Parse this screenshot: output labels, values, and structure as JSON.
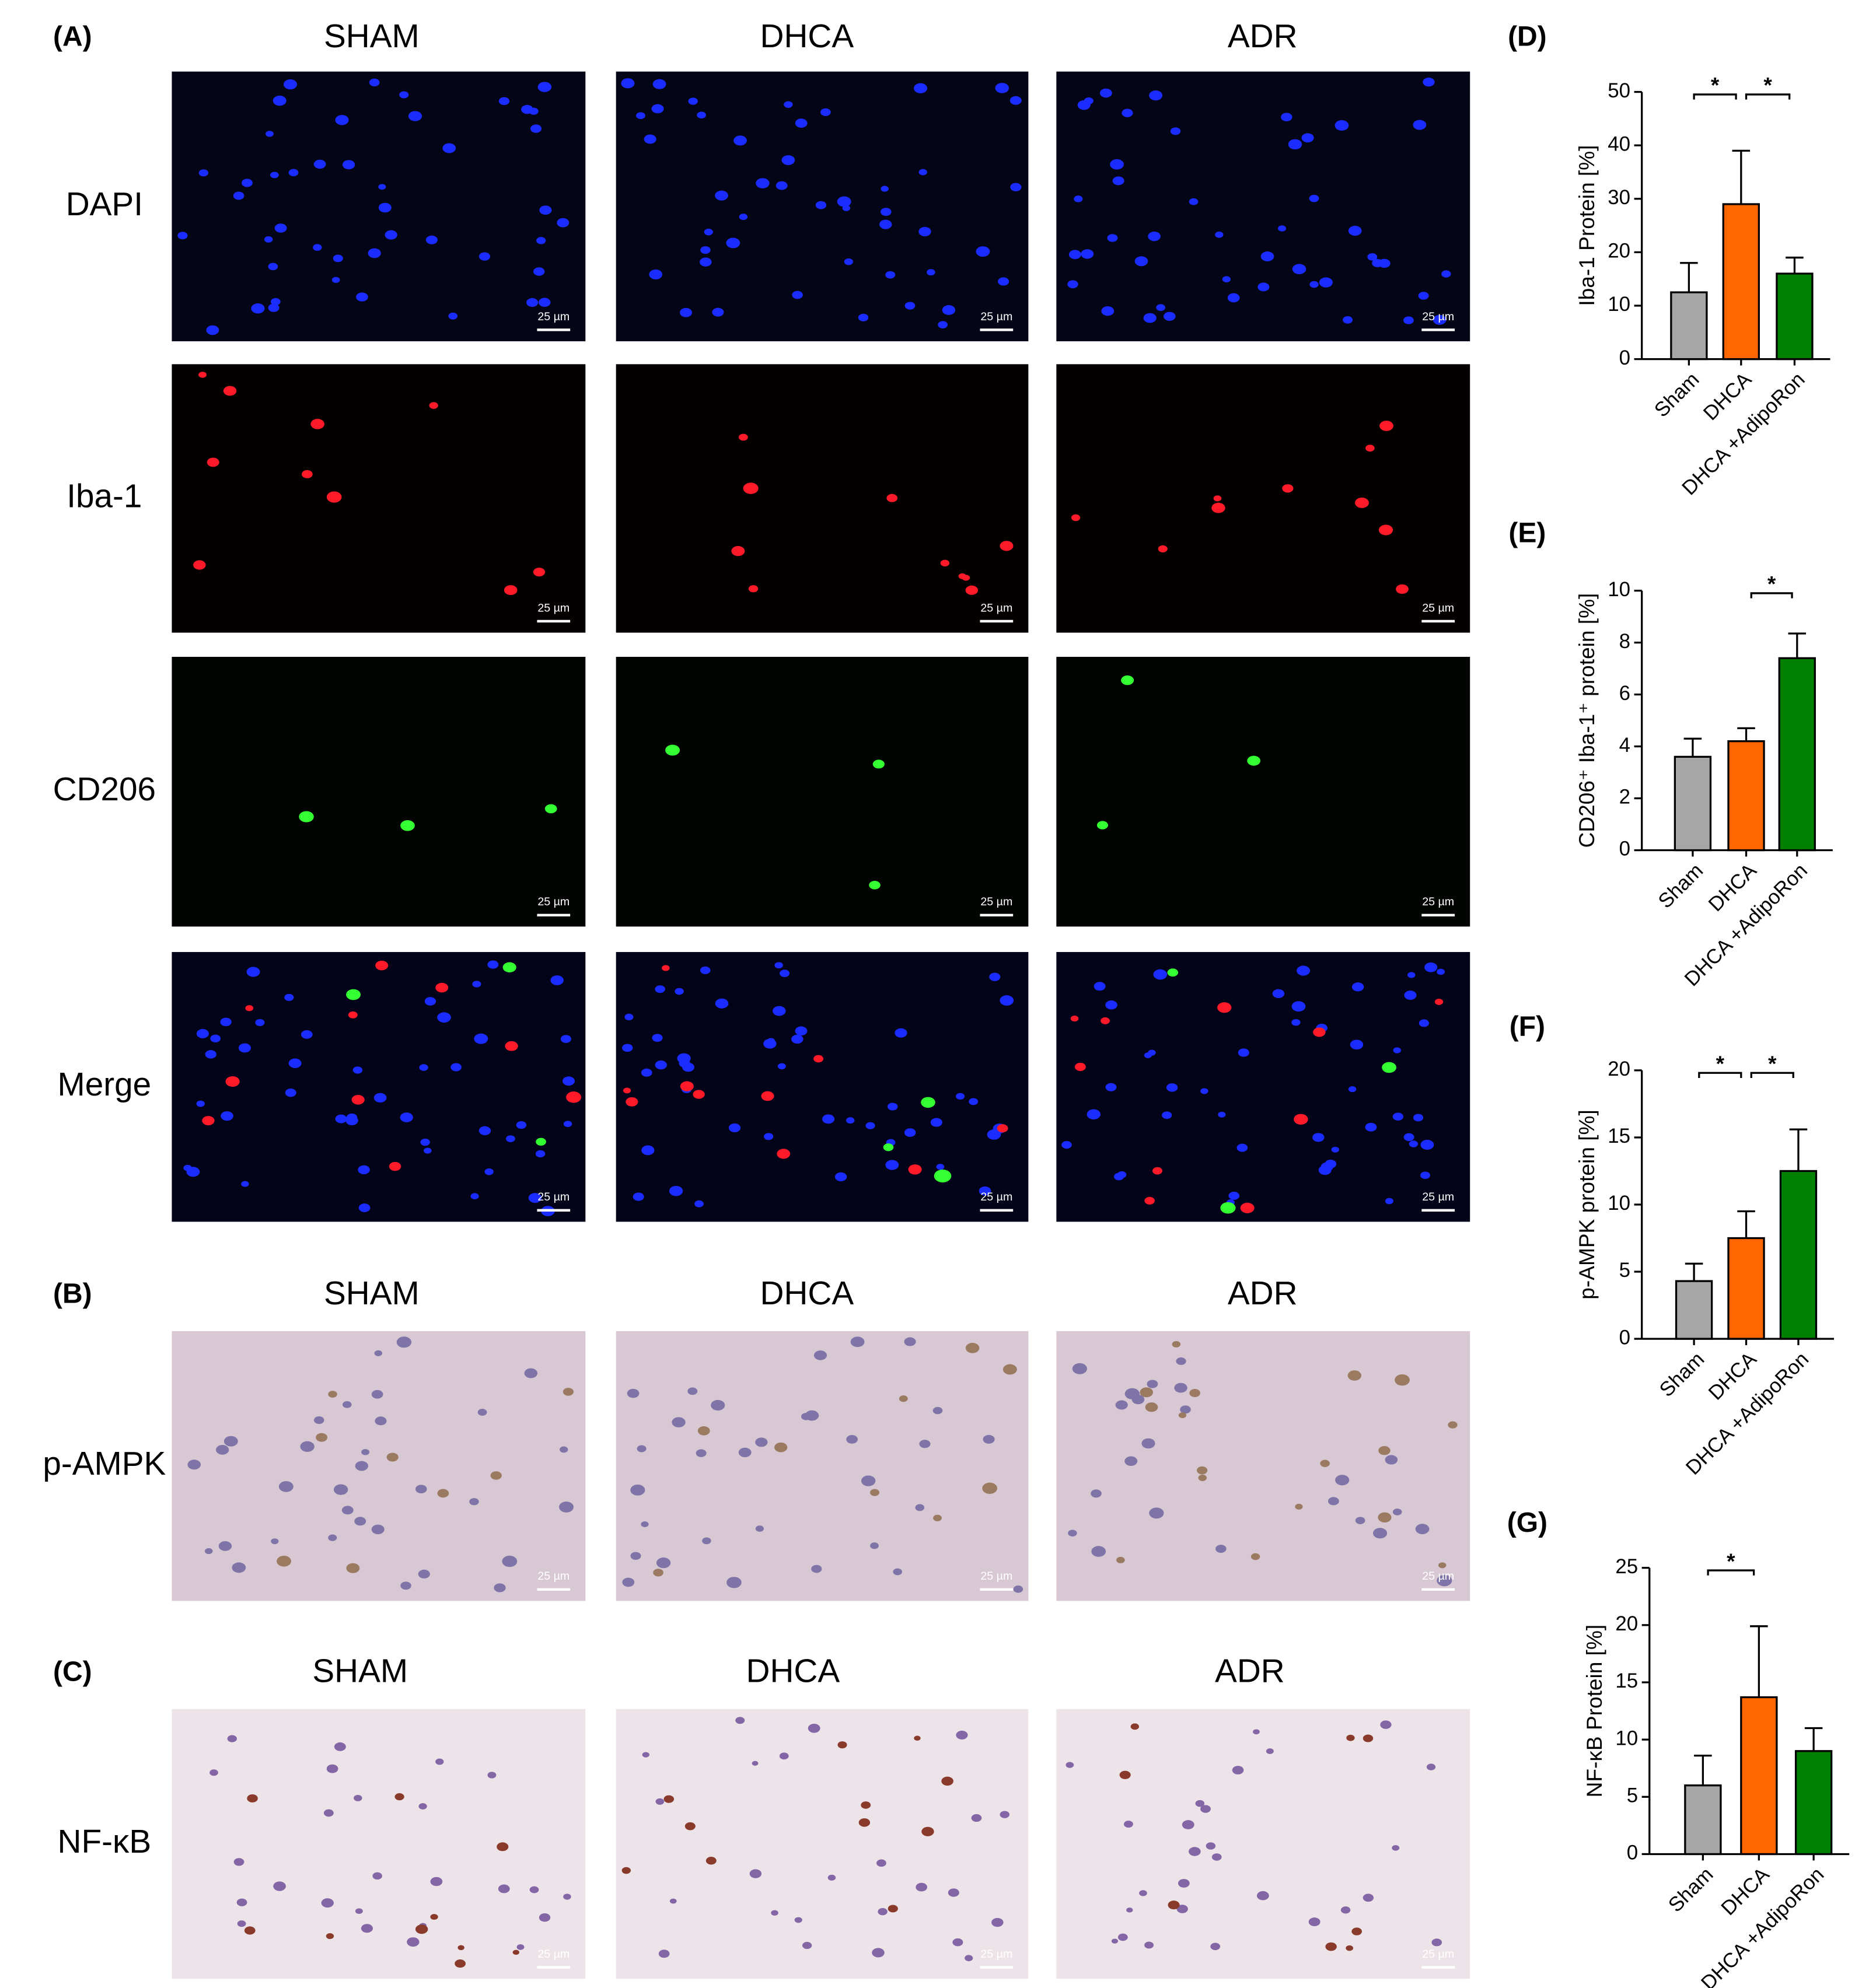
{
  "figure": {
    "panel_A": {
      "label": "(A)",
      "columns": [
        "SHAM",
        "DHCA",
        "ADR"
      ],
      "rows": [
        "DAPI",
        "Iba-1",
        "CD206",
        "Merge"
      ]
    },
    "panel_B": {
      "label": "(B)",
      "columns": [
        "SHAM",
        "DHCA",
        "ADR"
      ],
      "rows": [
        "p-AMPK"
      ]
    },
    "panel_C": {
      "label": "(C)",
      "columns": [
        "SHAM",
        "DHCA",
        "ADR"
      ],
      "rows": [
        "NF-κB"
      ]
    },
    "scale_bar": "25 µm"
  },
  "chart_data": [
    {
      "type": "bar",
      "panel_label": "(D)",
      "y_label": "Iba-1 Protein [%]",
      "categories": [
        "Sham",
        "DHCA",
        "DHCA +AdipoRon"
      ],
      "values": [
        12.5,
        29,
        16
      ],
      "errors": [
        5.5,
        10,
        3
      ],
      "colors": [
        "#a6a6a6",
        "#ff6600",
        "#008000"
      ],
      "ylim": [
        0,
        50
      ],
      "yticks": [
        0,
        10,
        20,
        30,
        40,
        50
      ],
      "significance": [
        {
          "pair": [
            0,
            1
          ],
          "label": "*"
        },
        {
          "pair": [
            1,
            2
          ],
          "label": "*"
        }
      ]
    },
    {
      "type": "bar",
      "panel_label": "(E)",
      "y_label": "CD206⁺ Iba-1⁺ protein [%]",
      "categories": [
        "Sham",
        "DHCA",
        "DHCA +AdipoRon"
      ],
      "values": [
        3.6,
        4.2,
        7.4
      ],
      "errors": [
        0.7,
        0.5,
        0.95
      ],
      "colors": [
        "#a6a6a6",
        "#ff6600",
        "#008000"
      ],
      "ylim": [
        0,
        10
      ],
      "yticks": [
        0,
        2,
        4,
        6,
        8,
        10
      ],
      "significance": [
        {
          "pair": [
            1,
            2
          ],
          "label": "*"
        }
      ]
    },
    {
      "type": "bar",
      "panel_label": "(F)",
      "y_label": "p-AMPK protein [%]",
      "categories": [
        "Sham",
        "DHCA",
        "DHCA +AdipoRon"
      ],
      "values": [
        4.3,
        7.5,
        12.5
      ],
      "errors": [
        1.3,
        2,
        3.1
      ],
      "colors": [
        "#a6a6a6",
        "#ff6600",
        "#008000"
      ],
      "ylim": [
        0,
        20
      ],
      "yticks": [
        0,
        5,
        10,
        15,
        20
      ],
      "significance": [
        {
          "pair": [
            0,
            1
          ],
          "label": "*"
        },
        {
          "pair": [
            1,
            2
          ],
          "label": "*"
        }
      ]
    },
    {
      "type": "bar",
      "panel_label": "(G)",
      "y_label": "NF-κB Protein [%]",
      "categories": [
        "Sham",
        "DHCA",
        "DHCA +AdipoRon"
      ],
      "values": [
        6,
        13.7,
        9
      ],
      "errors": [
        2.6,
        6.2,
        2
      ],
      "colors": [
        "#a6a6a6",
        "#ff6600",
        "#008000"
      ],
      "ylim": [
        0,
        25
      ],
      "yticks": [
        0,
        5,
        10,
        15,
        20,
        25
      ],
      "significance": [
        {
          "pair": [
            0,
            1
          ],
          "label": "*"
        }
      ]
    }
  ]
}
